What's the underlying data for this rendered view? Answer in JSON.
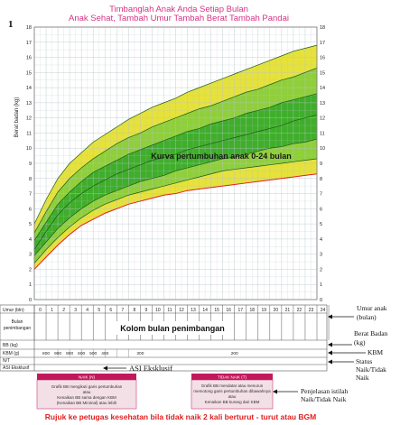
{
  "page_number": "1",
  "header": {
    "line1": "Timbanglah Anak Anda Setiap Bulan",
    "line2": "Anak Sehat, Tambah Umur  Tambah Berat  Tambah Pandai"
  },
  "colors": {
    "pink": "#d63384",
    "yellow": "#e8e43a",
    "green": "#3fae2a",
    "grid": "#b8c4c8",
    "red": "#e02020",
    "orange": "#e88a10"
  },
  "chart_data": {
    "type": "line",
    "title": "",
    "ylabel": "Berat badan (kg)",
    "xlabel": "Umur (bln)",
    "xlim": [
      0,
      24
    ],
    "ylim": [
      0,
      18
    ],
    "y_ticks": [
      "0",
      "1",
      "2",
      "3",
      "4",
      "5",
      "6",
      "7",
      "8",
      "9",
      "10",
      "11",
      "12",
      "13",
      "14",
      "15",
      "16",
      "17",
      "18"
    ],
    "x_ticks": [
      "0",
      "1",
      "2",
      "3",
      "4",
      "5",
      "6",
      "7",
      "8",
      "9",
      "10",
      "11",
      "12",
      "13",
      "14",
      "15",
      "16",
      "17",
      "18",
      "19",
      "20",
      "21",
      "22",
      "23",
      "24"
    ],
    "grid": true,
    "annotation": "Kurva pertumbuhan anak 0-24 bulan",
    "series": [
      {
        "values": [
          2.0,
          2.8,
          3.6,
          4.3,
          4.9,
          5.3,
          5.7,
          6.0,
          6.3,
          6.5,
          6.7,
          6.9,
          7.0,
          7.2,
          7.3,
          7.4,
          7.5,
          7.6,
          7.7,
          7.8,
          7.9,
          8.0,
          8.1,
          8.2,
          8.3
        ],
        "role": "edge"
      },
      {
        "values": [
          2.4,
          3.3,
          4.1,
          4.8,
          5.4,
          5.9,
          6.3,
          6.6,
          6.9,
          7.1,
          7.3,
          7.5,
          7.7,
          7.9,
          8.1,
          8.3,
          8.5,
          8.6,
          8.7,
          8.8,
          8.9,
          9.0,
          9.1,
          9.2,
          9.3
        ],
        "role": "band"
      },
      {
        "values": [
          2.9,
          3.8,
          4.7,
          5.4,
          6.0,
          6.5,
          6.9,
          7.2,
          7.5,
          7.8,
          8.0,
          8.2,
          8.5,
          8.7,
          8.9,
          9.1,
          9.3,
          9.4,
          9.6,
          9.8,
          10.0,
          10.1,
          10.3,
          10.4,
          10.6
        ],
        "role": "band"
      },
      {
        "values": [
          3.3,
          4.5,
          5.6,
          6.4,
          7.0,
          7.5,
          7.9,
          8.3,
          8.6,
          8.9,
          9.2,
          9.4,
          9.6,
          9.9,
          10.1,
          10.3,
          10.5,
          10.7,
          10.9,
          11.1,
          11.3,
          11.5,
          11.8,
          12.0,
          12.2
        ],
        "role": "band"
      },
      {
        "values": [
          3.9,
          5.1,
          6.3,
          7.1,
          7.8,
          8.4,
          8.8,
          9.2,
          9.6,
          9.9,
          10.2,
          10.5,
          10.8,
          11.1,
          11.3,
          11.6,
          11.8,
          12.0,
          12.3,
          12.5,
          12.7,
          13.0,
          13.2,
          13.4,
          13.6
        ],
        "role": "band"
      },
      {
        "values": [
          4.4,
          5.8,
          7.1,
          8.0,
          8.7,
          9.3,
          9.8,
          10.3,
          10.7,
          11.0,
          11.4,
          11.7,
          12.0,
          12.3,
          12.6,
          12.8,
          13.1,
          13.4,
          13.7,
          13.9,
          14.2,
          14.5,
          14.7,
          15.0,
          15.3
        ],
        "role": "band"
      },
      {
        "values": [
          5.0,
          6.6,
          8.0,
          9.0,
          9.7,
          10.4,
          10.9,
          11.4,
          11.9,
          12.3,
          12.7,
          13.0,
          13.3,
          13.7,
          14.0,
          14.3,
          14.6,
          14.9,
          15.2,
          15.5,
          15.8,
          16.1,
          16.4,
          16.6,
          16.8
        ],
        "role": "edge"
      }
    ]
  },
  "table": {
    "row_umur": "Umur (bln)",
    "row_bulan_a": "Bulan",
    "row_bulan_b": "penimbangan",
    "kolom_label": "Kolom bulan penimbangan",
    "row_bb": "BB (kg)",
    "row_kbm": "KBM (g)",
    "row_nt": "N/T",
    "row_asi": "ASI Eksklusif",
    "kbm_values": [
      "800",
      "900",
      "800",
      "600",
      "500",
      "400",
      "300",
      "200"
    ]
  },
  "side_labels": {
    "umur_a": "Umur anak",
    "umur_b": "(bulan)",
    "berat_a": "Berat Badan",
    "berat_b": "(kg)",
    "kbm": "KBM",
    "status_a": "Status",
    "status_b": "Naik/Tidak",
    "status_c": "Naik",
    "asi": "ASI Eksklusif",
    "penjelasan_a": "Penjelasan istilah",
    "penjelasan_b": "Naik/Tidak Naik"
  },
  "legend_boxes": {
    "naik_title": "NAIK (N)",
    "naik_l1": "Grafik BB mengikuti garis pertumbuhan",
    "naik_l2": "atau",
    "naik_l3": "Kenaikan BB sama dengan KBM",
    "naik_l4": "(Kenaikan BB Minimal) atau lebih",
    "tidak_title": "TIDAK NAIK (T)",
    "tidak_l1": "Grafik BB mendatar atau menurun",
    "tidak_l2": "memotong garis pertumbuhan dibawahnya",
    "tidak_l3": "atau",
    "tidak_l4": "Kenaikan BB kurang dari KBM"
  },
  "footer": "Rujuk ke petugas kesehatan bila tidak naik 2 kali berturut - turut atau BGM"
}
